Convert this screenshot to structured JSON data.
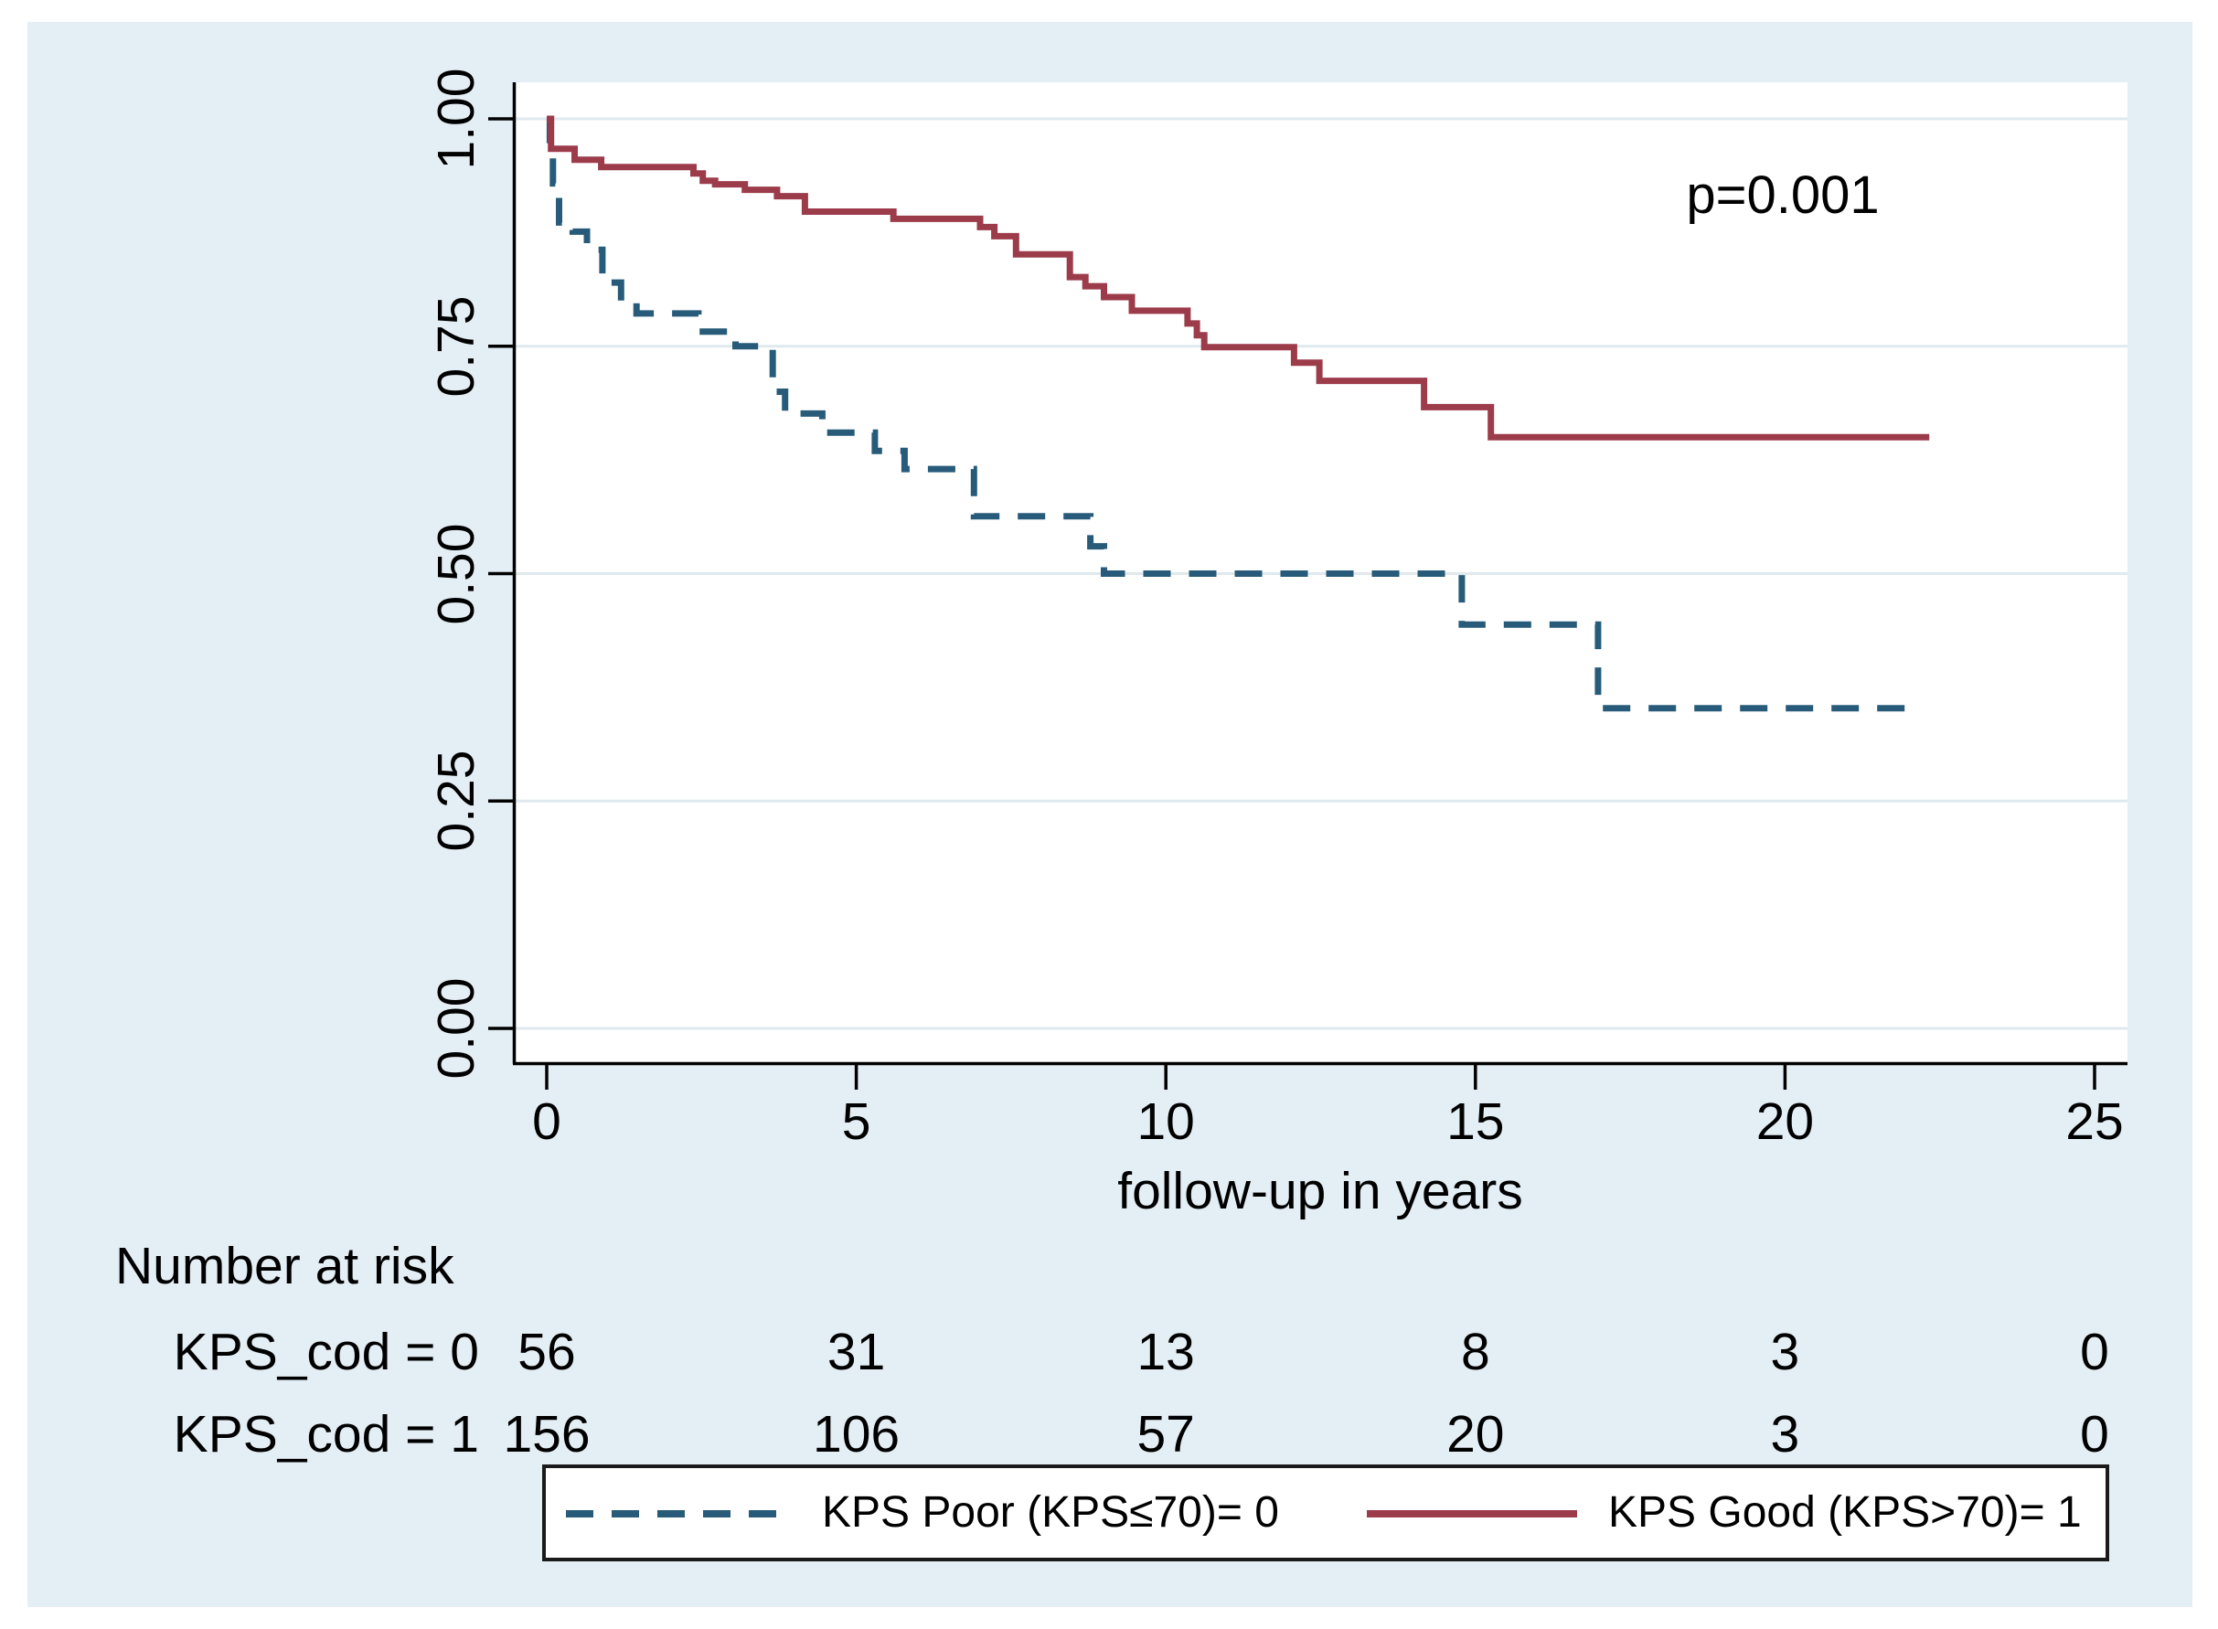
{
  "figure": {
    "p_annotation": "p=0.001",
    "colors": {
      "panel_bg": "#e4eef5",
      "plot_bg": "#ffffff",
      "grid": "#dfe9ee",
      "axis": "#000000",
      "kps_poor": "#275b79",
      "kps_good": "#9c3b4a"
    }
  },
  "chart_data": {
    "type": "line",
    "subtype": "kaplan-meier-step",
    "title": "",
    "xlabel": "follow-up in years",
    "ylabel": "",
    "x_ticks": [
      0,
      5,
      10,
      15,
      20,
      25
    ],
    "y_ticks": [
      "0.00",
      "0.25",
      "0.50",
      "0.75",
      "1.00"
    ],
    "xlim": [
      0,
      25.5
    ],
    "ylim": [
      0,
      1.0
    ],
    "grid": "horizontal",
    "legend_position": "bottom-box",
    "annotations": [
      {
        "text": "p=0.001",
        "x": 20,
        "y": 0.92
      }
    ],
    "series": [
      {
        "name": "KPS Poor (KPS≤70)= 0",
        "group": "KPS_cod = 0",
        "style": "dashed",
        "color": "#275b79",
        "points": [
          [
            0,
            1.0
          ],
          [
            0.05,
            0.964
          ],
          [
            0.1,
            0.929
          ],
          [
            0.2,
            0.886
          ],
          [
            0.42,
            0.876
          ],
          [
            0.65,
            0.856
          ],
          [
            0.9,
            0.82
          ],
          [
            1.2,
            0.8
          ],
          [
            1.45,
            0.786
          ],
          [
            2.45,
            0.766
          ],
          [
            3.05,
            0.75
          ],
          [
            3.65,
            0.7
          ],
          [
            3.85,
            0.676
          ],
          [
            4.45,
            0.655
          ],
          [
            5.3,
            0.635
          ],
          [
            5.78,
            0.615
          ],
          [
            6.9,
            0.563
          ],
          [
            8.78,
            0.53
          ],
          [
            9.0,
            0.5
          ],
          [
            14.78,
            0.444
          ],
          [
            16.98,
            0.352
          ],
          [
            22.15,
            0.352
          ]
        ]
      },
      {
        "name": "KPS Good (KPS>70)= 1",
        "group": "KPS_cod = 1",
        "style": "solid",
        "color": "#9c3b4a",
        "points": [
          [
            0,
            1.0
          ],
          [
            0.07,
            0.967
          ],
          [
            0.45,
            0.955
          ],
          [
            0.88,
            0.947
          ],
          [
            2.37,
            0.94
          ],
          [
            2.52,
            0.932
          ],
          [
            2.72,
            0.928
          ],
          [
            3.2,
            0.922
          ],
          [
            3.72,
            0.915
          ],
          [
            4.17,
            0.898
          ],
          [
            5.6,
            0.89
          ],
          [
            7.0,
            0.881
          ],
          [
            7.23,
            0.871
          ],
          [
            7.58,
            0.851
          ],
          [
            8.45,
            0.826
          ],
          [
            8.7,
            0.816
          ],
          [
            9.0,
            0.804
          ],
          [
            9.45,
            0.789
          ],
          [
            10.35,
            0.775
          ],
          [
            10.5,
            0.762
          ],
          [
            10.62,
            0.749
          ],
          [
            12.07,
            0.732
          ],
          [
            12.48,
            0.712
          ],
          [
            14.17,
            0.683
          ],
          [
            15.25,
            0.65
          ],
          [
            22.33,
            0.65
          ]
        ]
      }
    ]
  },
  "risk_table": {
    "title": "Number at risk",
    "time_points": [
      0,
      5,
      10,
      15,
      20,
      25
    ],
    "rows": [
      {
        "label": "KPS_cod = 0",
        "values": [
          "56",
          "31",
          "13",
          "8",
          "3",
          "0"
        ]
      },
      {
        "label": "KPS_cod = 1",
        "values": [
          "156",
          "106",
          "57",
          "20",
          "3",
          "0"
        ]
      }
    ]
  },
  "legend": {
    "items": [
      {
        "label": "KPS Poor (KPS≤70)= 0",
        "style": "dashed",
        "color": "#275b79"
      },
      {
        "label": "KPS Good (KPS>70)= 1",
        "style": "solid",
        "color": "#9c3b4a"
      }
    ]
  }
}
